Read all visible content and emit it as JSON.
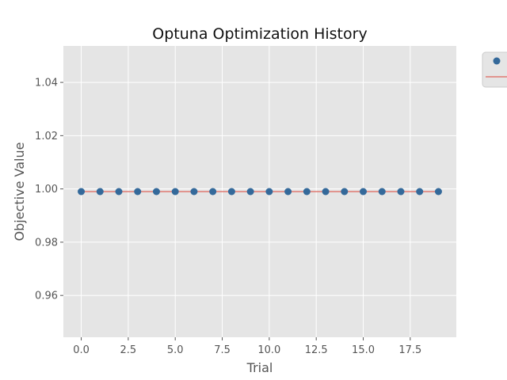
{
  "chart_data": {
    "type": "scatter",
    "title": "Optuna Optimization History",
    "xlabel": "Trial",
    "ylabel": "Objective Value",
    "xlim": [
      -0.95,
      19.95
    ],
    "ylim": [
      0.9443,
      1.0537
    ],
    "xticks": [
      0.0,
      2.5,
      5.0,
      7.5,
      10.0,
      12.5,
      15.0,
      17.5
    ],
    "xtick_labels": [
      "0.0",
      "2.5",
      "5.0",
      "7.5",
      "10.0",
      "12.5",
      "15.0",
      "17.5"
    ],
    "yticks": [
      0.96,
      0.98,
      1.0,
      1.02,
      1.04
    ],
    "ytick_labels": [
      "0.96",
      "0.98",
      "1.00",
      "1.02",
      "1.04"
    ],
    "grid": true,
    "legend_placement": "outside-top-right",
    "series": [
      {
        "kind": "scatter",
        "color": "#34699a",
        "x": [
          0,
          1,
          2,
          3,
          4,
          5,
          6,
          7,
          8,
          9,
          10,
          11,
          12,
          13,
          14,
          15,
          16,
          17,
          18,
          19
        ],
        "y": [
          0.999,
          0.999,
          0.999,
          0.999,
          0.999,
          0.999,
          0.999,
          0.999,
          0.999,
          0.999,
          0.999,
          0.999,
          0.999,
          0.999,
          0.999,
          0.999,
          0.999,
          0.999,
          0.999,
          0.999
        ]
      },
      {
        "kind": "line",
        "color": "#e07b73",
        "x": [
          0,
          1,
          2,
          3,
          4,
          5,
          6,
          7,
          8,
          9,
          10,
          11,
          12,
          13,
          14,
          15,
          16,
          17,
          18,
          19
        ],
        "y": [
          0.999,
          0.999,
          0.999,
          0.999,
          0.999,
          0.999,
          0.999,
          0.999,
          0.999,
          0.999,
          0.999,
          0.999,
          0.999,
          0.999,
          0.999,
          0.999,
          0.999,
          0.999,
          0.999,
          0.999
        ]
      }
    ],
    "colors": {
      "plot_background": "#e5e5e5",
      "grid": "#ffffff",
      "legend_background": "#e5e5e5",
      "legend_border": "#cccccc"
    }
  }
}
